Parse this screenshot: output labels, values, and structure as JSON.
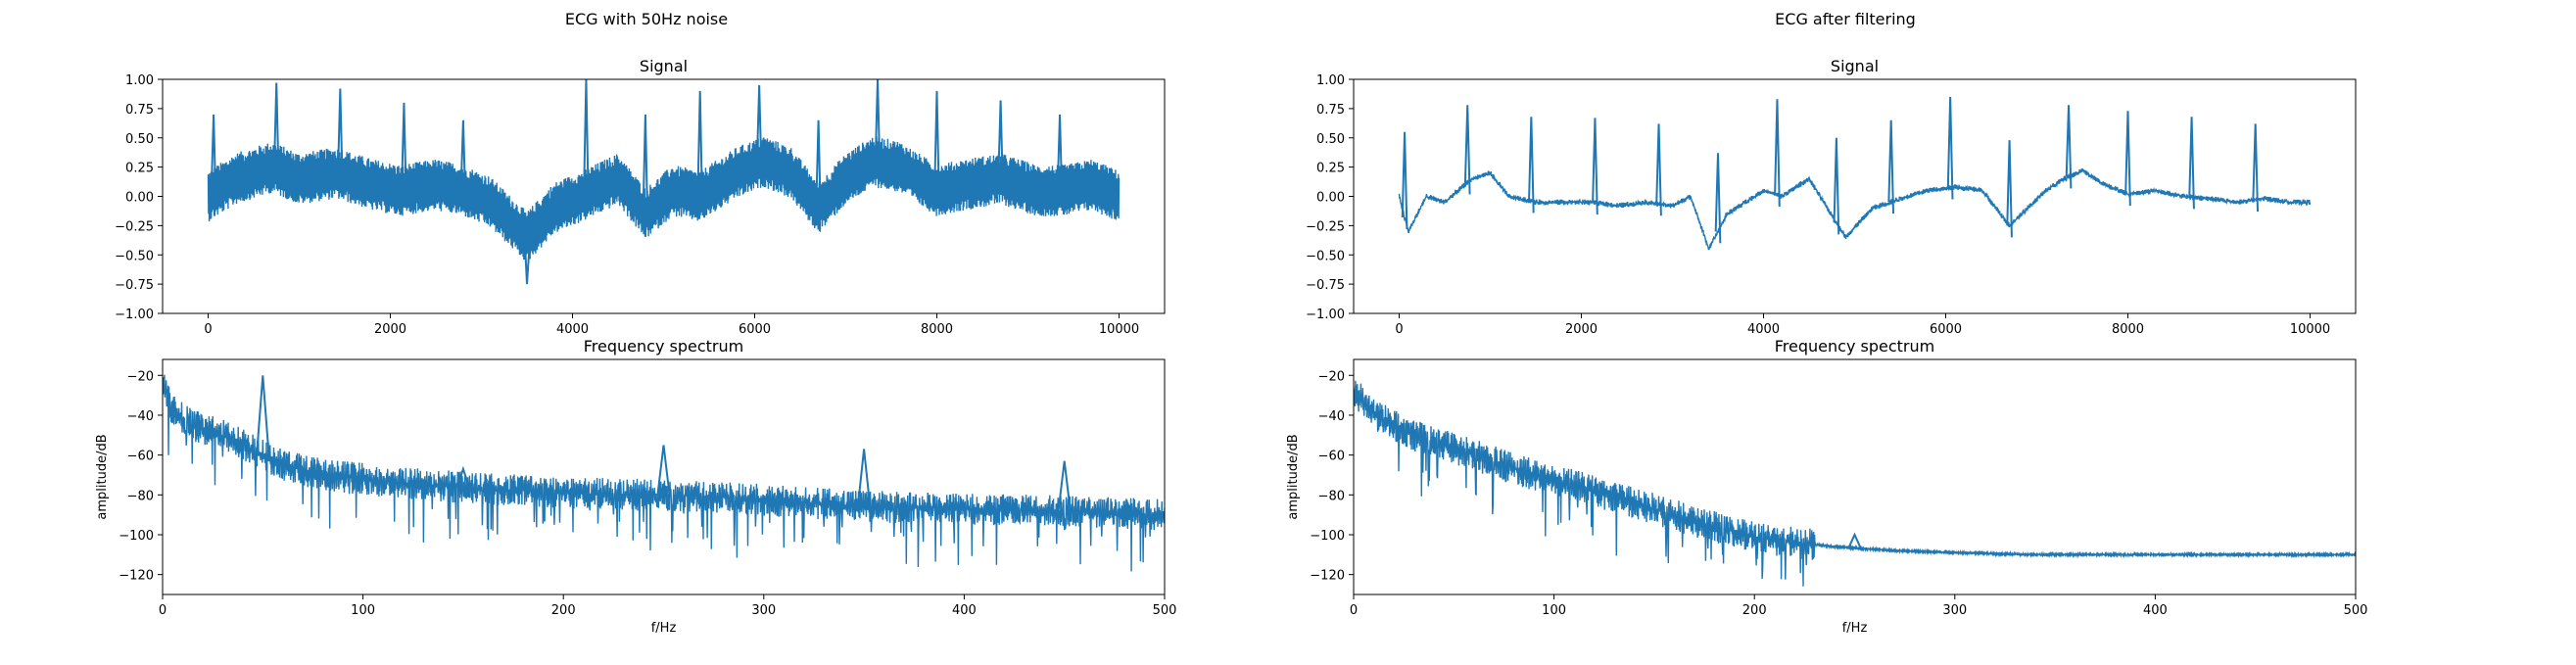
{
  "figures": [
    {
      "suptitle": "ECG with 50Hz noise"
    },
    {
      "suptitle": "ECG after filtering"
    }
  ],
  "colors": {
    "line": "#1f77b4",
    "axes": "#000000",
    "background": "#ffffff"
  },
  "chart_data": [
    {
      "type": "line",
      "title": "Signal",
      "xlabel": "",
      "ylabel": "",
      "xlim": [
        -500,
        10500
      ],
      "ylim": [
        -1.0,
        1.0
      ],
      "xticks": [
        0,
        2000,
        4000,
        6000,
        8000,
        10000
      ],
      "yticks": [
        -1.0,
        -0.75,
        -0.5,
        -0.25,
        0.0,
        0.25,
        0.5,
        0.75,
        1.0
      ],
      "ytick_labels": [
        "−1.00",
        "−0.75",
        "−0.50",
        "−0.25",
        "0.00",
        "0.25",
        "0.50",
        "0.75",
        "1.00"
      ],
      "grid": false,
      "series": [
        {
          "x": [
            0,
            300,
            700,
            1000,
            1400,
            1800,
            2100,
            2500,
            2800,
            3100,
            3300,
            3500,
            3800,
            4100,
            4500,
            4800,
            5100,
            5400,
            5800,
            6100,
            6400,
            6700,
            7000,
            7300,
            7600,
            8000,
            8300,
            8700,
            9100,
            9400,
            9700,
            10000
          ],
          "y": [
            0.0,
            0.15,
            0.25,
            0.15,
            0.2,
            0.1,
            0.05,
            0.1,
            0.05,
            -0.05,
            -0.2,
            -0.35,
            -0.1,
            0.0,
            0.15,
            -0.15,
            0.05,
            0.0,
            0.2,
            0.3,
            0.2,
            -0.1,
            0.15,
            0.3,
            0.25,
            0.05,
            0.1,
            0.15,
            0.05,
            0.05,
            0.1,
            0.0
          ],
          "noise_amplitude": 0.22,
          "r_peaks": [
            {
              "x": 60,
              "y": 0.7
            },
            {
              "x": 750,
              "y": 0.97
            },
            {
              "x": 1450,
              "y": 0.92
            },
            {
              "x": 2150,
              "y": 0.8
            },
            {
              "x": 2800,
              "y": 0.65
            },
            {
              "x": 3500,
              "y": -0.75
            },
            {
              "x": 4150,
              "y": 1.0
            },
            {
              "x": 4800,
              "y": 0.7
            },
            {
              "x": 5400,
              "y": 0.9
            },
            {
              "x": 6050,
              "y": 0.95
            },
            {
              "x": 6700,
              "y": 0.65
            },
            {
              "x": 7350,
              "y": 1.0
            },
            {
              "x": 8000,
              "y": 0.9
            },
            {
              "x": 8700,
              "y": 0.82
            },
            {
              "x": 9350,
              "y": 0.7
            }
          ]
        }
      ]
    },
    {
      "type": "line",
      "title": "Frequency spectrum",
      "xlabel": "f/Hz",
      "ylabel": "amplitude/dB",
      "xlim": [
        0,
        500
      ],
      "ylim": [
        -130,
        -12
      ],
      "xticks": [
        0,
        100,
        200,
        300,
        400,
        500
      ],
      "yticks": [
        -120,
        -100,
        -80,
        -60,
        -40,
        -20
      ],
      "ytick_labels": [
        "−120",
        "−100",
        "−80",
        "−60",
        "−40",
        "−20"
      ],
      "grid": false,
      "series": [
        {
          "x": [
            0,
            5,
            15,
            30,
            45,
            60,
            80,
            120,
            160,
            200,
            240,
            280,
            320,
            360,
            400,
            440,
            480,
            500
          ],
          "y": [
            -25,
            -38,
            -45,
            -50,
            -57,
            -65,
            -70,
            -74,
            -77,
            -79,
            -80,
            -81,
            -84,
            -86,
            -87,
            -88,
            -89,
            -90
          ],
          "noise_amplitude": 8,
          "peaks": [
            {
              "x": 50,
              "y": -20
            },
            {
              "x": 150,
              "y": -67
            },
            {
              "x": 250,
              "y": -55
            },
            {
              "x": 350,
              "y": -57
            },
            {
              "x": 450,
              "y": -63
            }
          ]
        }
      ]
    },
    {
      "type": "line",
      "title": "Signal",
      "xlabel": "",
      "ylabel": "",
      "xlim": [
        -500,
        10500
      ],
      "ylim": [
        -1.0,
        1.0
      ],
      "xticks": [
        0,
        2000,
        4000,
        6000,
        8000,
        10000
      ],
      "yticks": [
        -1.0,
        -0.75,
        -0.5,
        -0.25,
        0.0,
        0.25,
        0.5,
        0.75,
        1.0
      ],
      "ytick_labels": [
        "−1.00",
        "−0.75",
        "−0.50",
        "−0.25",
        "0.00",
        "0.25",
        "0.50",
        "0.75",
        "1.00"
      ],
      "grid": false,
      "series": [
        {
          "x": [
            0,
            100,
            300,
            500,
            800,
            1000,
            1200,
            1500,
            1800,
            2100,
            2400,
            2700,
            3000,
            3200,
            3400,
            3600,
            3800,
            4000,
            4200,
            4500,
            4700,
            4900,
            5200,
            5500,
            5800,
            6100,
            6400,
            6700,
            6900,
            7100,
            7300,
            7500,
            7700,
            8000,
            8300,
            8600,
            8900,
            9200,
            9500,
            9800,
            10000
          ],
          "y": [
            0.0,
            -0.3,
            0.0,
            -0.05,
            0.15,
            0.2,
            0.0,
            -0.05,
            -0.05,
            -0.05,
            -0.08,
            -0.05,
            -0.08,
            0.0,
            -0.45,
            -0.15,
            -0.05,
            0.05,
            0.0,
            0.15,
            -0.1,
            -0.35,
            -0.1,
            -0.02,
            0.05,
            0.08,
            0.05,
            -0.25,
            -0.1,
            0.05,
            0.15,
            0.22,
            0.12,
            0.02,
            0.05,
            0.0,
            -0.02,
            -0.05,
            -0.02,
            -0.05,
            -0.05
          ],
          "noise_amplitude": 0.01,
          "r_peaks": [
            {
              "x": 60,
              "y": 0.55
            },
            {
              "x": 750,
              "y": 0.78
            },
            {
              "x": 1450,
              "y": 0.68
            },
            {
              "x": 2150,
              "y": 0.67
            },
            {
              "x": 2850,
              "y": 0.62
            },
            {
              "x": 3500,
              "y": 0.37
            },
            {
              "x": 4150,
              "y": 0.83
            },
            {
              "x": 4800,
              "y": 0.5
            },
            {
              "x": 5400,
              "y": 0.65
            },
            {
              "x": 6050,
              "y": 0.85
            },
            {
              "x": 6700,
              "y": 0.48
            },
            {
              "x": 7350,
              "y": 0.78
            },
            {
              "x": 8000,
              "y": 0.73
            },
            {
              "x": 8700,
              "y": 0.68
            },
            {
              "x": 9400,
              "y": 0.62
            }
          ]
        }
      ]
    },
    {
      "type": "line",
      "title": "Frequency spectrum",
      "xlabel": "f/Hz",
      "ylabel": "amplitude/dB",
      "xlim": [
        0,
        500
      ],
      "ylim": [
        -130,
        -12
      ],
      "xticks": [
        0,
        100,
        200,
        300,
        400,
        500
      ],
      "yticks": [
        -120,
        -100,
        -80,
        -60,
        -40,
        -20
      ],
      "ytick_labels": [
        "−120",
        "−100",
        "−80",
        "−60",
        "−40",
        "−20"
      ],
      "grid": false,
      "series": [
        {
          "x": [
            0,
            10,
            30,
            60,
            90,
            120,
            150,
            180,
            210,
            240,
            270,
            300,
            340,
            400,
            450,
            500
          ],
          "y": [
            -27,
            -40,
            -50,
            -60,
            -70,
            -78,
            -87,
            -96,
            -103,
            -106,
            -108,
            -109,
            -110,
            -110,
            -110,
            -110
          ],
          "noise_amplitude": 8,
          "peaks": [
            {
              "x": 250,
              "y": -100
            }
          ]
        }
      ]
    }
  ]
}
